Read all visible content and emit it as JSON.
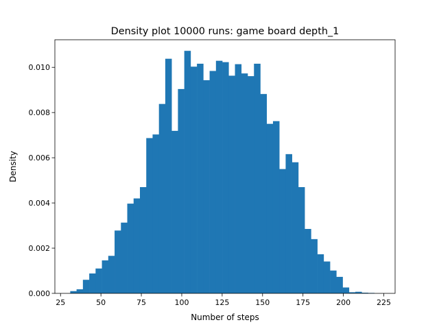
{
  "chart_data": {
    "type": "histogram",
    "title": "Density plot 10000 runs: game board depth_1",
    "xlabel": "Number of steps",
    "ylabel": "Density",
    "xlim": [
      21.5,
      232.0
    ],
    "ylim": [
      0,
      0.01122
    ],
    "bar_color": "#1f77b4",
    "grid": false,
    "legend": "none",
    "x_ticks": [
      25,
      50,
      75,
      100,
      125,
      150,
      175,
      200,
      225
    ],
    "x_tick_labels": [
      "25",
      "50",
      "75",
      "100",
      "125",
      "150",
      "175",
      "200",
      "225"
    ],
    "y_ticks": [
      0,
      0.002,
      0.004,
      0.006,
      0.008,
      0.01
    ],
    "y_tick_labels": [
      "0.000",
      "0.002",
      "0.004",
      "0.006",
      "0.008",
      "0.010"
    ],
    "bin_start": 31.0,
    "bin_width": 3.92,
    "densities": [
      0.0001,
      0.00018,
      0.0006,
      0.00088,
      0.0011,
      0.00146,
      0.00166,
      0.00278,
      0.00313,
      0.00397,
      0.0042,
      0.0047,
      0.00687,
      0.00703,
      0.00838,
      0.01038,
      0.00719,
      0.00904,
      0.01073,
      0.01003,
      0.01016,
      0.00943,
      0.00984,
      0.01029,
      0.01023,
      0.00963,
      0.01014,
      0.00973,
      0.00961,
      0.01016,
      0.00882,
      0.0075,
      0.00762,
      0.0055,
      0.00616,
      0.0058,
      0.0047,
      0.00285,
      0.0024,
      0.00173,
      0.00141,
      0.00101,
      0.00073,
      0.00026,
      5e-05,
      7e-05,
      3e-05,
      2e-05
    ]
  }
}
